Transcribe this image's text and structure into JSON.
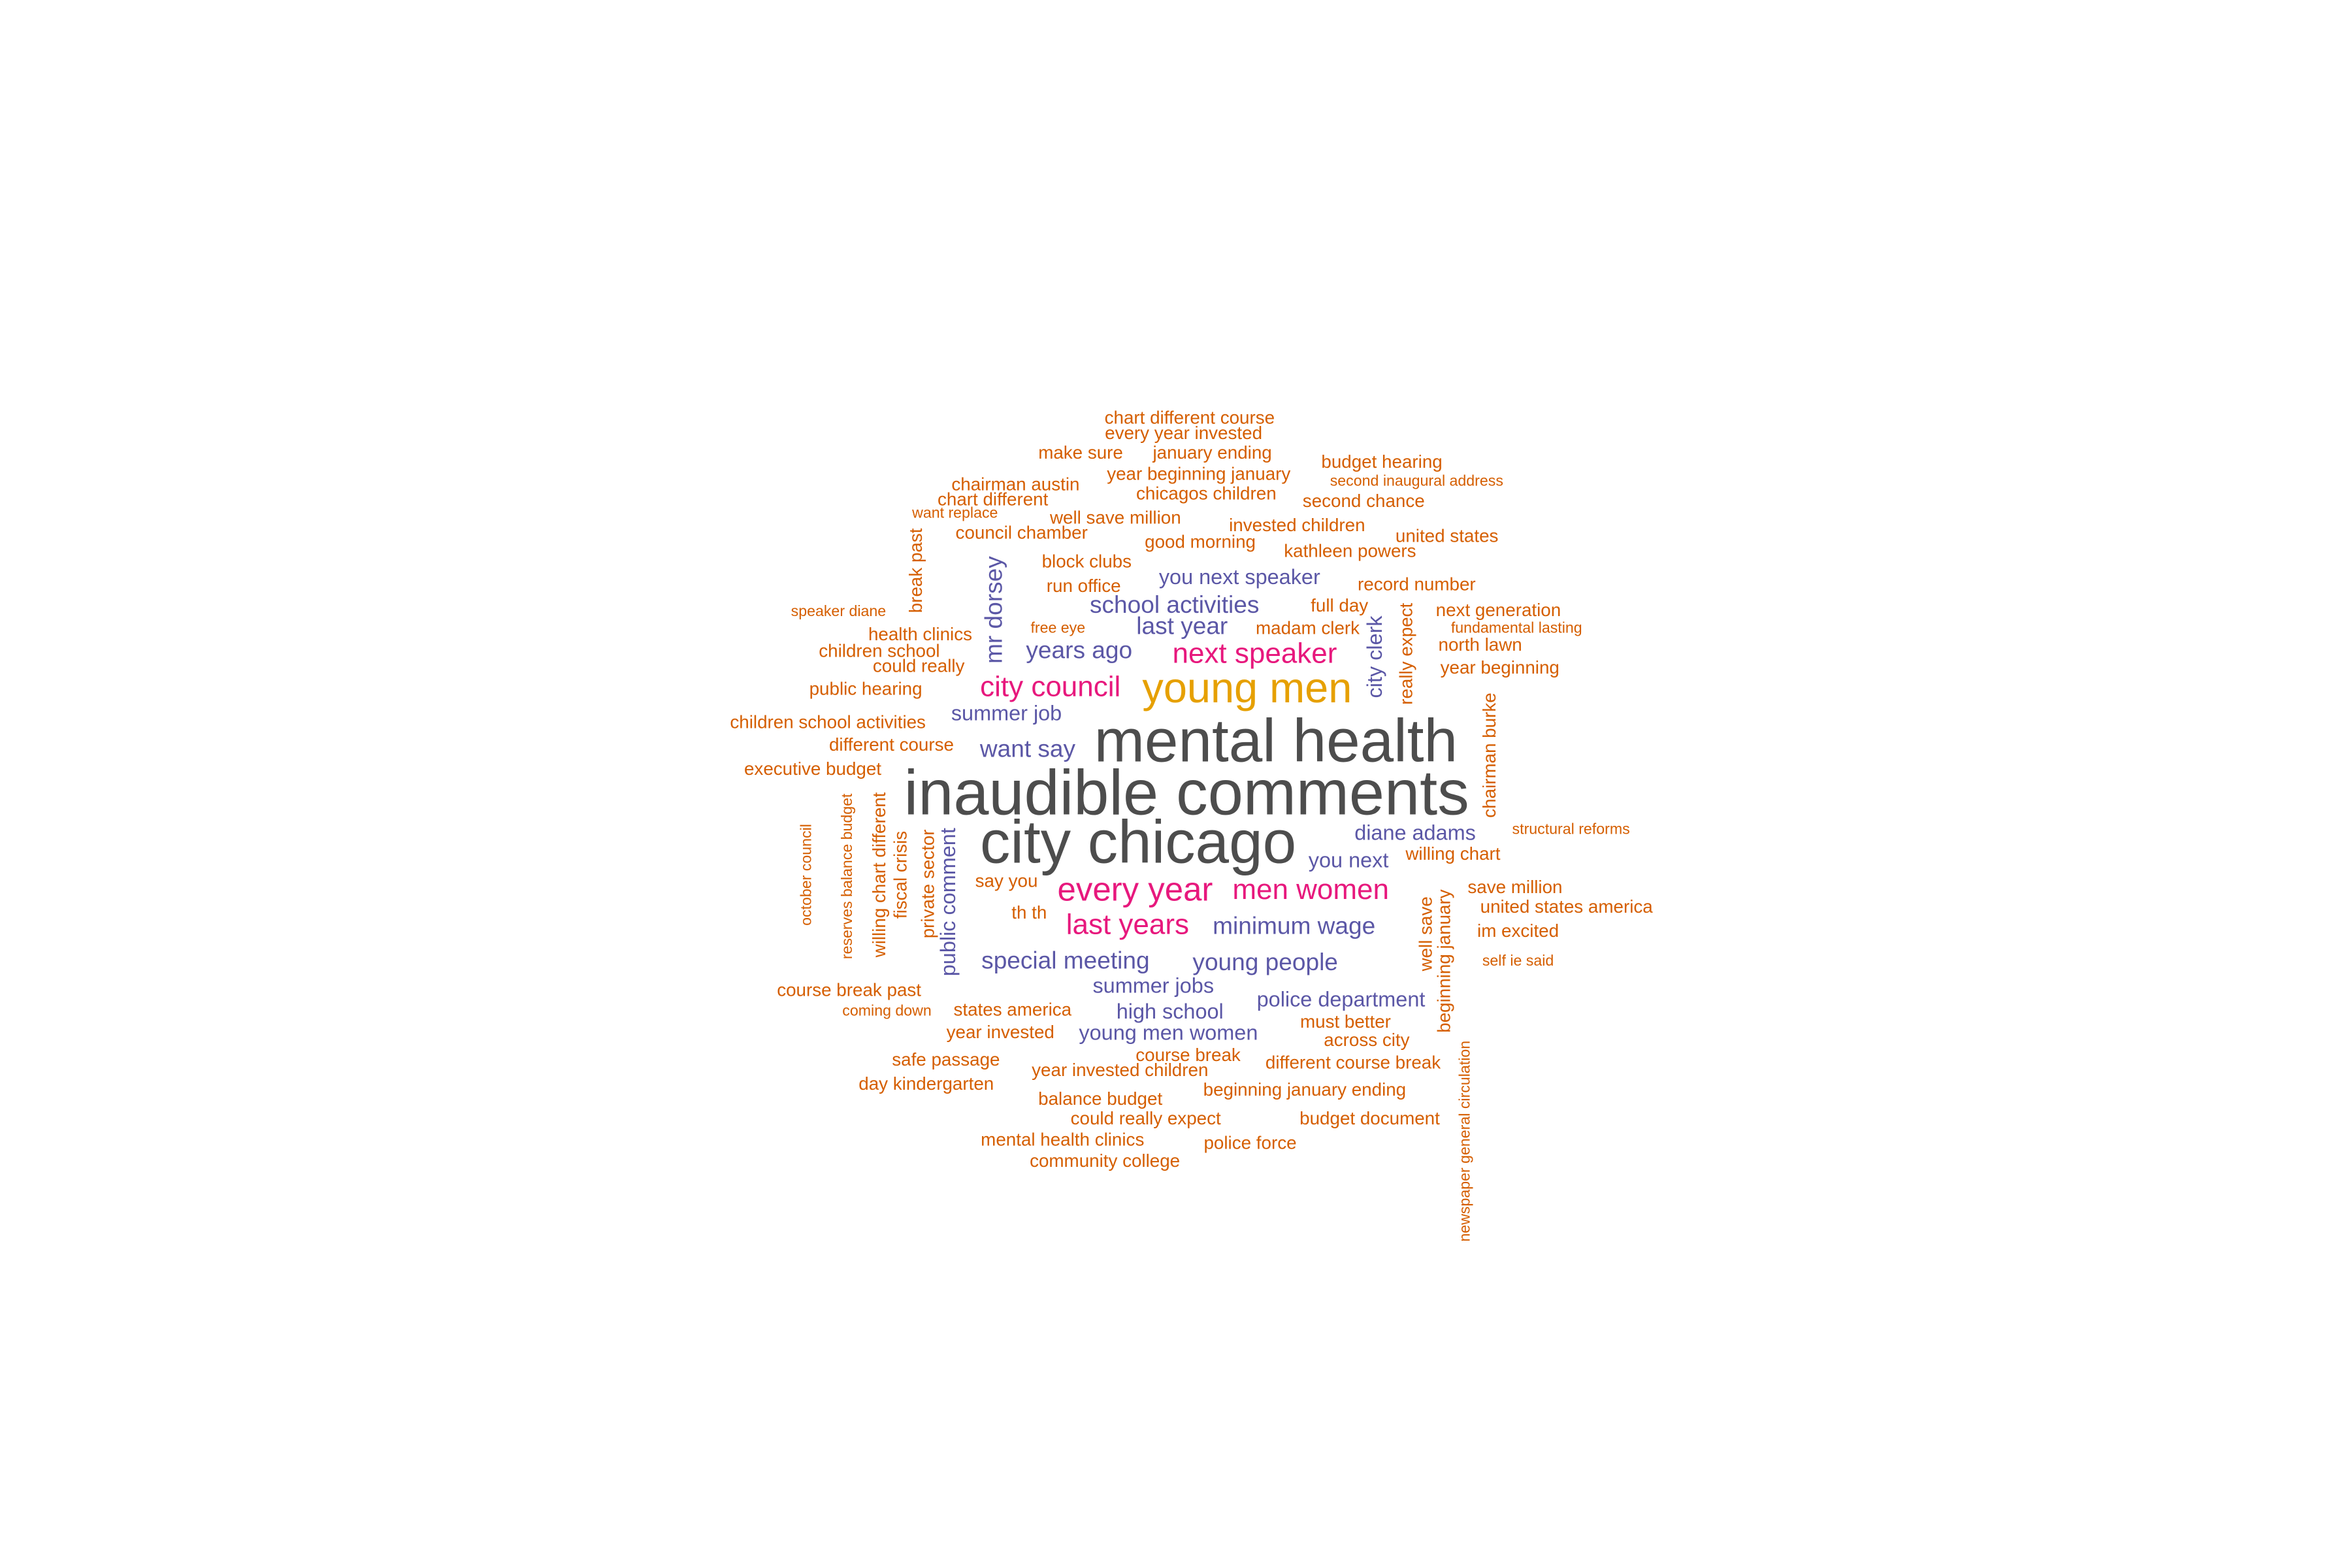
{
  "palette": {
    "gray": "#4D4D4D",
    "gold": "#E6A000",
    "pink": "#E7187D",
    "purple": "#5B57A6",
    "orange": "#D55E00"
  },
  "words": [
    {
      "text": "inaudible comments",
      "color": "gray"
    },
    {
      "text": "mental health",
      "color": "gray"
    },
    {
      "text": "city chicago",
      "color": "gray"
    },
    {
      "text": "young men",
      "color": "gold"
    },
    {
      "text": "next speaker",
      "color": "pink"
    },
    {
      "text": "city council",
      "color": "pink"
    },
    {
      "text": "every year",
      "color": "pink"
    },
    {
      "text": "men women",
      "color": "pink"
    },
    {
      "text": "last years",
      "color": "pink"
    },
    {
      "text": "school activities",
      "color": "purple"
    },
    {
      "text": "last year",
      "color": "purple"
    },
    {
      "text": "years ago",
      "color": "purple"
    },
    {
      "text": "you next speaker",
      "color": "purple"
    },
    {
      "text": "summer job",
      "color": "purple"
    },
    {
      "text": "want say",
      "color": "purple"
    },
    {
      "text": "mr dorsey",
      "color": "purple"
    },
    {
      "text": "city clerk",
      "color": "purple"
    },
    {
      "text": "diane adams",
      "color": "purple"
    },
    {
      "text": "you next",
      "color": "purple"
    },
    {
      "text": "minimum wage",
      "color": "purple"
    },
    {
      "text": "special meeting",
      "color": "purple"
    },
    {
      "text": "young people",
      "color": "purple"
    },
    {
      "text": "summer jobs",
      "color": "purple"
    },
    {
      "text": "police department",
      "color": "purple"
    },
    {
      "text": "high school",
      "color": "purple"
    },
    {
      "text": "young men women",
      "color": "purple"
    },
    {
      "text": "public comment",
      "color": "purple"
    },
    {
      "text": "chart different course",
      "color": "orange"
    },
    {
      "text": "every year invested",
      "color": "orange"
    },
    {
      "text": "make sure",
      "color": "orange"
    },
    {
      "text": "january ending",
      "color": "orange"
    },
    {
      "text": "budget hearing",
      "color": "orange"
    },
    {
      "text": "chairman austin",
      "color": "orange"
    },
    {
      "text": "year beginning january",
      "color": "orange"
    },
    {
      "text": "second inaugural address",
      "color": "orange"
    },
    {
      "text": "chart different",
      "color": "orange"
    },
    {
      "text": "chicagos children",
      "color": "orange"
    },
    {
      "text": "second chance",
      "color": "orange"
    },
    {
      "text": "want replace",
      "color": "orange"
    },
    {
      "text": "well save million",
      "color": "orange"
    },
    {
      "text": "council chamber",
      "color": "orange"
    },
    {
      "text": "invested children",
      "color": "orange"
    },
    {
      "text": "united states",
      "color": "orange"
    },
    {
      "text": "good morning",
      "color": "orange"
    },
    {
      "text": "kathleen powers",
      "color": "orange"
    },
    {
      "text": "block clubs",
      "color": "orange"
    },
    {
      "text": "run office",
      "color": "orange"
    },
    {
      "text": "record number",
      "color": "orange"
    },
    {
      "text": "break past",
      "color": "orange"
    },
    {
      "text": "speaker diane",
      "color": "orange"
    },
    {
      "text": "full day",
      "color": "orange"
    },
    {
      "text": "next generation",
      "color": "orange"
    },
    {
      "text": "health clinics",
      "color": "orange"
    },
    {
      "text": "free eye",
      "color": "orange"
    },
    {
      "text": "madam clerk",
      "color": "orange"
    },
    {
      "text": "fundamental lasting",
      "color": "orange"
    },
    {
      "text": "children school",
      "color": "orange"
    },
    {
      "text": "north lawn",
      "color": "orange"
    },
    {
      "text": "could really",
      "color": "orange"
    },
    {
      "text": "really expect",
      "color": "orange"
    },
    {
      "text": "year beginning",
      "color": "orange"
    },
    {
      "text": "public hearing",
      "color": "orange"
    },
    {
      "text": "children school activities",
      "color": "orange"
    },
    {
      "text": "different course",
      "color": "orange"
    },
    {
      "text": "chairman burke",
      "color": "orange"
    },
    {
      "text": "executive budget",
      "color": "orange"
    },
    {
      "text": "structural reforms",
      "color": "orange"
    },
    {
      "text": "willing chart",
      "color": "orange"
    },
    {
      "text": "october council",
      "color": "orange"
    },
    {
      "text": "reserves balance budget",
      "color": "orange"
    },
    {
      "text": "willing chart different",
      "color": "orange"
    },
    {
      "text": "fiscal crisis",
      "color": "orange"
    },
    {
      "text": "private sector",
      "color": "orange"
    },
    {
      "text": "say you",
      "color": "orange"
    },
    {
      "text": "save million",
      "color": "orange"
    },
    {
      "text": "united states america",
      "color": "orange"
    },
    {
      "text": "th th",
      "color": "orange"
    },
    {
      "text": "im excited",
      "color": "orange"
    },
    {
      "text": "well save",
      "color": "orange"
    },
    {
      "text": "beginning january",
      "color": "orange"
    },
    {
      "text": "self ie said",
      "color": "orange"
    },
    {
      "text": "course break past",
      "color": "orange"
    },
    {
      "text": "coming down",
      "color": "orange"
    },
    {
      "text": "states america",
      "color": "orange"
    },
    {
      "text": "must better",
      "color": "orange"
    },
    {
      "text": "year invested",
      "color": "orange"
    },
    {
      "text": "across city",
      "color": "orange"
    },
    {
      "text": "course break",
      "color": "orange"
    },
    {
      "text": "safe passage",
      "color": "orange"
    },
    {
      "text": "different course break",
      "color": "orange"
    },
    {
      "text": "year invested children",
      "color": "orange"
    },
    {
      "text": "day kindergarten",
      "color": "orange"
    },
    {
      "text": "newspaper general circulation",
      "color": "orange"
    },
    {
      "text": "balance budget",
      "color": "orange"
    },
    {
      "text": "beginning january ending",
      "color": "orange"
    },
    {
      "text": "could really expect",
      "color": "orange"
    },
    {
      "text": "budget document",
      "color": "orange"
    },
    {
      "text": "mental health clinics",
      "color": "orange"
    },
    {
      "text": "police force",
      "color": "orange"
    },
    {
      "text": "community college",
      "color": "orange"
    }
  ]
}
